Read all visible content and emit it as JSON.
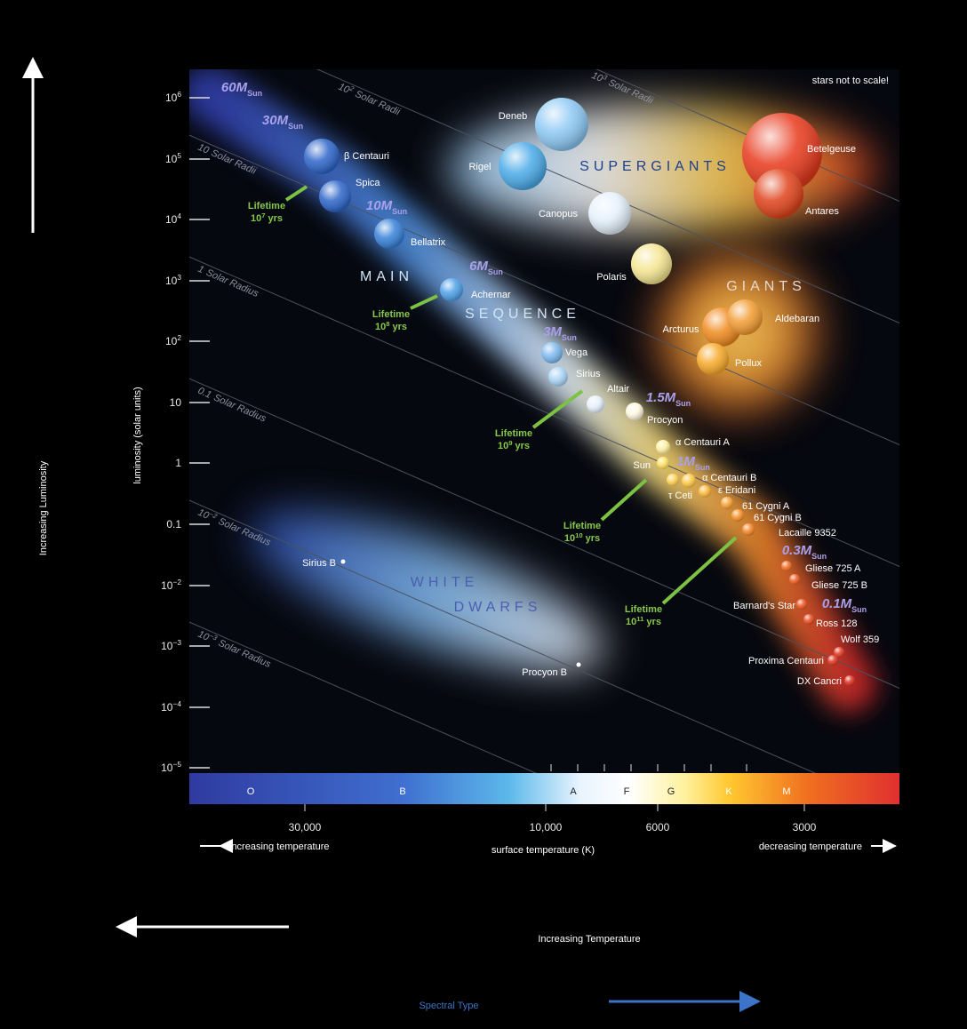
{
  "note": "stars not to scale!",
  "axes": {
    "y_label": "luminosity (solar units)",
    "y_ticks": [
      {
        "base": "10",
        "exp": "6"
      },
      {
        "base": "10",
        "exp": "5"
      },
      {
        "base": "10",
        "exp": "4"
      },
      {
        "base": "10",
        "exp": "3"
      },
      {
        "base": "10",
        "exp": "2"
      },
      {
        "base": "10"
      },
      {
        "base": "1"
      },
      {
        "base": "0.1"
      },
      {
        "base": "10",
        "exp": "−2"
      },
      {
        "base": "10",
        "exp": "−3"
      },
      {
        "base": "10",
        "exp": "−4"
      },
      {
        "base": "10",
        "exp": "−5"
      }
    ],
    "x_ticks": [
      "30,000",
      "10,000",
      "6000",
      "3000"
    ],
    "x_label": "surface temperature (K)",
    "x_left": "increasing temperature",
    "x_right": "decreasing temperature"
  },
  "spectral_classes": [
    "O",
    "B",
    "A",
    "F",
    "G",
    "K",
    "M"
  ],
  "regions": [
    "SUPERGIANTS",
    "GIANTS",
    "MAIN",
    "SEQUENCE",
    "WHITE",
    "DWARFS"
  ],
  "radius_lines": [
    {
      "base": "10",
      "exp": "3",
      "unit": "Solar Radii"
    },
    {
      "base": "10",
      "exp": "2",
      "unit": "Solar Radii"
    },
    {
      "base": "10",
      "unit": "Solar Radii"
    },
    {
      "base": "1",
      "unit": "Solar Radius"
    },
    {
      "base": "0.1",
      "unit": "Solar Radius"
    },
    {
      "base": "10",
      "exp": "−2",
      "unit": "Solar Radius"
    },
    {
      "base": "10",
      "exp": "−3",
      "unit": "Solar Radius"
    }
  ],
  "masses": [
    {
      "value": "60",
      "symbol": "M",
      "sub": "Sun"
    },
    {
      "value": "30",
      "symbol": "M",
      "sub": "Sun"
    },
    {
      "value": "10",
      "symbol": "M",
      "sub": "Sun"
    },
    {
      "value": "6",
      "symbol": "M",
      "sub": "Sun"
    },
    {
      "value": "3",
      "symbol": "M",
      "sub": "Sun"
    },
    {
      "value": "1.5",
      "symbol": "M",
      "sub": "Sun"
    },
    {
      "value": "1",
      "symbol": "M",
      "sub": "Sun"
    },
    {
      "value": "0.3",
      "symbol": "M",
      "sub": "Sun"
    },
    {
      "value": "0.1",
      "symbol": "M",
      "sub": "Sun"
    }
  ],
  "lifetimes": [
    {
      "label": "Lifetime",
      "base": "10",
      "exp": "7",
      "unit": "yrs"
    },
    {
      "label": "Lifetime",
      "base": "10",
      "exp": "8",
      "unit": "yrs"
    },
    {
      "label": "Lifetime",
      "base": "10",
      "exp": "9",
      "unit": "yrs"
    },
    {
      "label": "Lifetime",
      "base": "10",
      "exp": "10",
      "unit": "yrs"
    },
    {
      "label": "Lifetime",
      "base": "10",
      "exp": "11",
      "unit": "yrs"
    }
  ],
  "stars": [
    "Deneb",
    "Rigel",
    "Canopus",
    "Polaris",
    "Betelgeuse",
    "Antares",
    "Arcturus",
    "Aldebaran",
    "Pollux",
    "β Centauri",
    "Spica",
    "Bellatrix",
    "Achernar",
    "Vega",
    "Sirius",
    "Altair",
    "Procyon",
    "α Centauri A",
    "Sun",
    "α Centauri B",
    "ε Eridani",
    "τ Ceti",
    "61 Cygni A",
    "61 Cygni B",
    "Lacaille 9352",
    "Gliese 725 A",
    "Gliese 725 B",
    "Barnard's Star",
    "Ross 128",
    "Wolf 359",
    "Proxima Centauri",
    "DX Cancri",
    "Sirius B",
    "Procyon B"
  ],
  "labels": {
    "luminosity": "Increasing Luminosity",
    "temperature": "Increasing Temperature",
    "spectral": "Spectral Type"
  }
}
